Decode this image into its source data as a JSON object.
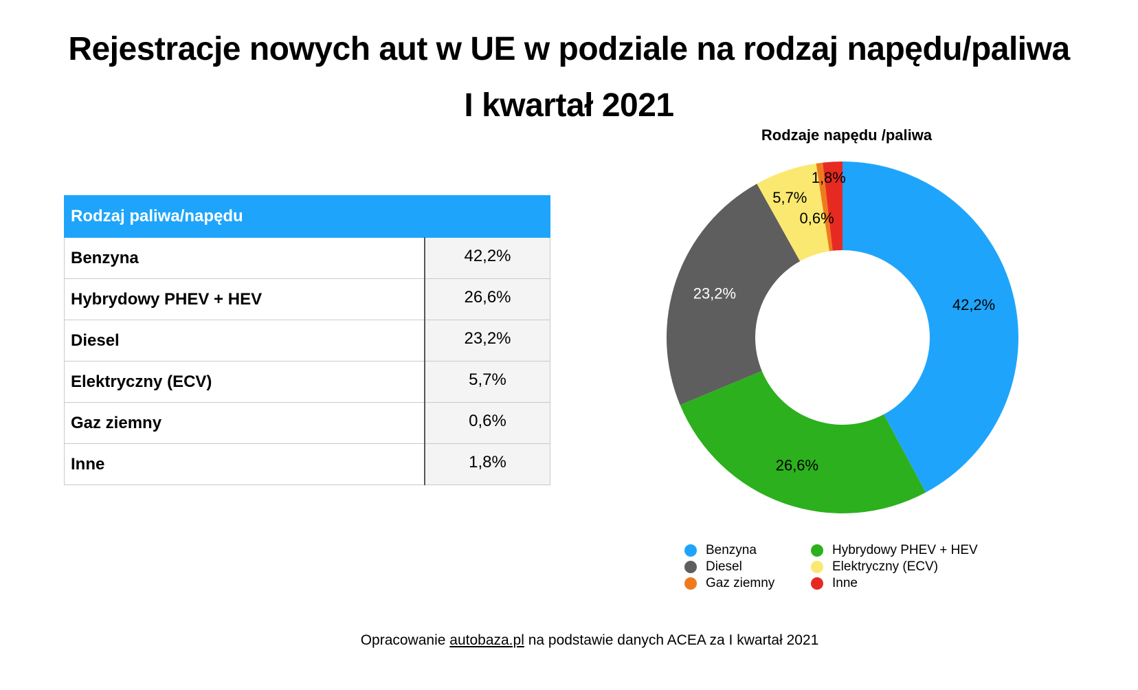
{
  "title_line1": "Rejestracje nowych aut w UE w podziale na rodzaj napędu/paliwa",
  "title_line2": "I kwartał 2021",
  "table": {
    "header": "Rodzaj paliwa/napędu",
    "rows": [
      {
        "label": "Benzyna",
        "value": "42,2%"
      },
      {
        "label": "Hybrydowy PHEV + HEV",
        "value": "26,6%"
      },
      {
        "label": "Diesel",
        "value": "23,2%"
      },
      {
        "label": "Elektryczny (ECV)",
        "value": "5,7%"
      },
      {
        "label": "Gaz ziemny",
        "value": "0,6%"
      },
      {
        "label": "Inne",
        "value": "1,8%"
      }
    ]
  },
  "chart_data": {
    "type": "pie",
    "variant": "donut",
    "title": "Rodzaje napędu /paliwa",
    "legend_position": "bottom",
    "slices": [
      {
        "name": "Benzyna",
        "value": 42.2,
        "label": "42,2%",
        "color": "#1ea5fb"
      },
      {
        "name": "Hybrydowy PHEV + HEV",
        "value": 26.6,
        "label": "26,6%",
        "color": "#2cb01e"
      },
      {
        "name": "Diesel",
        "value": 23.2,
        "label": "23,2%",
        "color": "#5e5e5e"
      },
      {
        "name": "Elektryczny (ECV)",
        "value": 5.7,
        "label": "5,7%",
        "color": "#fbe870"
      },
      {
        "name": "Gaz ziemny",
        "value": 0.6,
        "label": "0,6%",
        "color": "#ef7a1e"
      },
      {
        "name": "Inne",
        "value": 1.8,
        "label": "1,8%",
        "color": "#e62a22"
      }
    ],
    "legend_order": [
      "Benzyna",
      "Hybrydowy PHEV + HEV",
      "Diesel",
      "Elektryczny (ECV)",
      "Gaz ziemny",
      "Inne"
    ]
  },
  "footer": {
    "prefix": "Opracowanie ",
    "link": "autobaza.pl",
    "suffix": " na podstawie danych ACEA za I kwartał 2021"
  }
}
